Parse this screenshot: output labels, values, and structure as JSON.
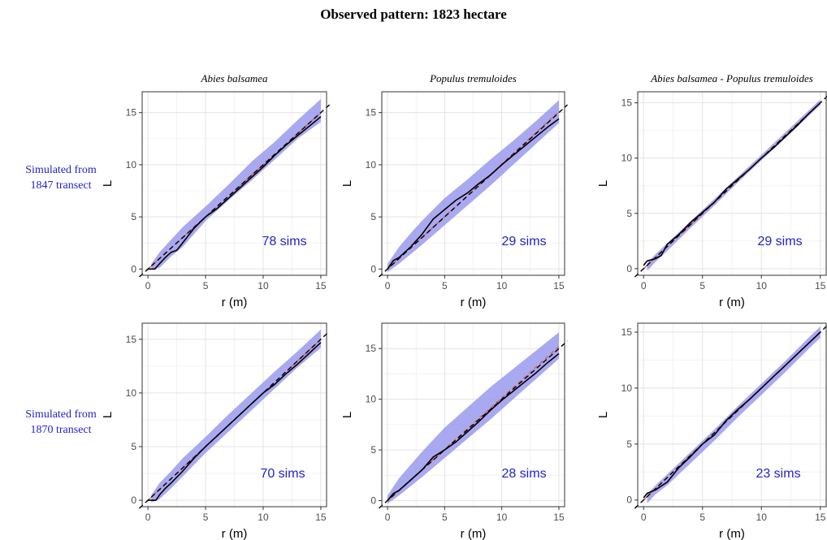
{
  "title": "Observed pattern: 1823 hectare",
  "row_labels": [
    [
      "Simulated from",
      "1847 transect"
    ],
    [
      "Simulated from",
      "1870 transect"
    ]
  ],
  "colors": {
    "envelope": "#9a9aee",
    "observed": "#000000",
    "theoretical": "#000000",
    "simulated_mean": "#e05a5a",
    "label_blue": "#2323c8"
  },
  "chart_data": [
    {
      "type": "line",
      "title": "Abies balsamea",
      "row_label": "1847 transect",
      "xlabel": "r (m)",
      "ylabel": "L",
      "xlim": [
        -0.5,
        15.5
      ],
      "ylim": [
        -0.6,
        17
      ],
      "xticks": [
        0,
        5,
        10,
        15
      ],
      "yticks": [
        0,
        5,
        10,
        15
      ],
      "annotation": "78 sims",
      "series": [
        {
          "role": "envelope",
          "x": [
            0.3,
            1,
            2,
            3,
            5,
            7,
            9,
            11,
            13,
            15
          ],
          "lower": [
            0,
            0.1,
            1.2,
            2.1,
            4.6,
            6.6,
            8.5,
            10.5,
            12.5,
            14.1
          ],
          "upper": [
            0.5,
            1.6,
            2.8,
            4,
            6,
            8.1,
            10.3,
            12.2,
            14.3,
            16.3
          ]
        },
        {
          "role": "theoretical",
          "x": [
            -0.5,
            15.5
          ],
          "y": [
            -0.5,
            15.5
          ]
        },
        {
          "role": "simulated_mean",
          "x": [
            0,
            15
          ],
          "y": [
            0,
            15
          ]
        },
        {
          "role": "observed",
          "x": [
            0,
            0.6,
            1,
            1.5,
            2,
            2.5,
            3,
            4,
            5,
            6,
            7,
            8,
            9,
            10,
            11,
            12,
            13,
            14,
            15
          ],
          "y": [
            0,
            0,
            0.5,
            1.1,
            1.6,
            1.8,
            2.5,
            3.9,
            5,
            5.8,
            6.8,
            7.8,
            8.8,
            9.8,
            10.9,
            11.9,
            12.8,
            13.7,
            14.6
          ]
        }
      ]
    },
    {
      "type": "line",
      "title": "Populus tremuloides",
      "row_label": "1847 transect",
      "xlabel": "r (m)",
      "ylabel": "L",
      "xlim": [
        -0.5,
        15.5
      ],
      "ylim": [
        -0.6,
        17
      ],
      "xticks": [
        0,
        5,
        10,
        15
      ],
      "yticks": [
        0,
        5,
        10,
        15
      ],
      "annotation": "29 sims",
      "series": [
        {
          "role": "envelope",
          "x": [
            0,
            1,
            2,
            3,
            5,
            7,
            9,
            11,
            13,
            15
          ],
          "lower": [
            -0.3,
            0.5,
            1.4,
            2.3,
            4.2,
            6.1,
            8,
            10,
            12,
            14
          ],
          "upper": [
            0.5,
            2.1,
            3.4,
            4.6,
            6.8,
            8.6,
            10.5,
            12.3,
            14.2,
            16.2
          ]
        },
        {
          "role": "theoretical",
          "x": [
            -0.5,
            15.5
          ],
          "y": [
            -0.5,
            15.5
          ]
        },
        {
          "role": "simulated_mean",
          "x": [
            0,
            15
          ],
          "y": [
            0,
            15.1
          ]
        },
        {
          "role": "observed",
          "x": [
            0,
            0.5,
            1,
            2,
            3,
            4,
            5,
            6,
            7,
            8,
            9,
            10,
            11,
            12,
            13,
            14,
            15
          ],
          "y": [
            0,
            0.8,
            1.1,
            2.1,
            3.3,
            4.8,
            5.7,
            6.6,
            7.3,
            8.2,
            9,
            10,
            10.9,
            11.8,
            12.7,
            13.6,
            14.4
          ]
        }
      ]
    },
    {
      "type": "line",
      "title": "Abies balsamea - Populus tremuloides",
      "row_label": "1847 transect",
      "xlabel": "r (m)",
      "ylabel": "L",
      "xlim": [
        -0.5,
        15.5
      ],
      "ylim": [
        -0.6,
        16
      ],
      "xticks": [
        0,
        5,
        10,
        15
      ],
      "yticks": [
        0,
        5,
        10,
        15
      ],
      "annotation": "29 sims",
      "series": [
        {
          "role": "envelope",
          "x": [
            0.3,
            1,
            2,
            4,
            6,
            8,
            10,
            12,
            14,
            15
          ],
          "lower": [
            -0.2,
            0.6,
            1.6,
            3.7,
            5.7,
            7.8,
            9.8,
            11.8,
            13.8,
            14.8
          ],
          "upper": [
            0.5,
            1.3,
            2.3,
            4.3,
            6.3,
            8.3,
            10.3,
            12.3,
            14.3,
            15.3
          ]
        },
        {
          "role": "theoretical",
          "x": [
            -0.5,
            15.5
          ],
          "y": [
            -0.5,
            15.5
          ]
        },
        {
          "role": "simulated_mean",
          "x": [
            0,
            15
          ],
          "y": [
            0,
            15
          ]
        },
        {
          "role": "observed",
          "x": [
            0,
            0.3,
            1,
            1.5,
            2,
            3,
            4,
            5,
            6,
            7,
            8,
            9,
            10,
            11,
            12,
            13,
            14,
            15
          ],
          "y": [
            0.3,
            0.7,
            0.9,
            1.2,
            2.2,
            3.1,
            4.2,
            5.1,
            6,
            7.2,
            8.1,
            9,
            10,
            10.9,
            11.9,
            12.9,
            14,
            15
          ]
        }
      ]
    },
    {
      "type": "line",
      "title": "",
      "row_label": "1870 transect",
      "xlabel": "r (m)",
      "ylabel": "L",
      "xlim": [
        -0.5,
        15.5
      ],
      "ylim": [
        -0.6,
        16.5
      ],
      "xticks": [
        0,
        5,
        10,
        15
      ],
      "yticks": [
        0,
        5,
        10,
        15
      ],
      "annotation": "70 sims",
      "series": [
        {
          "role": "envelope",
          "x": [
            0.3,
            1,
            2,
            3,
            5,
            7,
            9,
            11,
            13,
            15
          ],
          "lower": [
            -0.2,
            0.1,
            1.1,
            2.2,
            4.4,
            6.4,
            8.4,
            10.4,
            12.4,
            14.2
          ],
          "upper": [
            0.5,
            1.6,
            2.7,
            3.9,
            5.9,
            8,
            10,
            12,
            13.9,
            15.9
          ]
        },
        {
          "role": "theoretical",
          "x": [
            -0.5,
            15.5
          ],
          "y": [
            -0.5,
            15.5
          ]
        },
        {
          "role": "simulated_mean",
          "x": [
            0,
            15
          ],
          "y": [
            0,
            15
          ]
        },
        {
          "role": "observed",
          "x": [
            0,
            0.7,
            1,
            1.5,
            2,
            3,
            4,
            5,
            6,
            7,
            8,
            9,
            10,
            11,
            12,
            13,
            14,
            15
          ],
          "y": [
            0,
            0,
            0.5,
            1.1,
            1.6,
            2.7,
            3.9,
            5,
            6,
            7,
            8,
            9,
            10,
            10.8,
            11.8,
            12.7,
            13.7,
            14.7
          ]
        }
      ]
    },
    {
      "type": "line",
      "title": "",
      "row_label": "1870 transect",
      "xlabel": "r (m)",
      "ylabel": "L",
      "xlim": [
        -0.5,
        15.5
      ],
      "ylim": [
        -0.6,
        17.5
      ],
      "xticks": [
        0,
        5,
        10,
        15
      ],
      "yticks": [
        0,
        5,
        10,
        15
      ],
      "annotation": "28 sims",
      "series": [
        {
          "role": "envelope",
          "x": [
            0,
            1,
            2,
            3,
            5,
            7,
            9,
            11,
            13,
            15
          ],
          "lower": [
            -0.3,
            0.5,
            1.4,
            2.3,
            4.2,
            6.1,
            8,
            10,
            12,
            14
          ],
          "upper": [
            0.5,
            2.2,
            3.5,
            4.8,
            7.2,
            9.2,
            11.2,
            13,
            14.8,
            16.6
          ]
        },
        {
          "role": "theoretical",
          "x": [
            -0.5,
            15.5
          ],
          "y": [
            -0.5,
            15.5
          ]
        },
        {
          "role": "simulated_mean",
          "x": [
            0,
            15
          ],
          "y": [
            0,
            15.2
          ]
        },
        {
          "role": "observed",
          "x": [
            0,
            0.5,
            1,
            2,
            3,
            4,
            5,
            6,
            7,
            8,
            9,
            10,
            11,
            12,
            13,
            14,
            15
          ],
          "y": [
            0,
            0.7,
            1,
            2,
            3,
            4.3,
            5,
            5.8,
            6.8,
            7.8,
            8.9,
            9.9,
            10.8,
            11.7,
            12.6,
            13.6,
            14.5
          ]
        }
      ]
    },
    {
      "type": "line",
      "title": "",
      "row_label": "1870 transect",
      "xlabel": "r (m)",
      "ylabel": "L",
      "xlim": [
        -0.5,
        15.5
      ],
      "ylim": [
        -0.6,
        15.8
      ],
      "xticks": [
        0,
        5,
        10,
        15
      ],
      "yticks": [
        0,
        5,
        10,
        15
      ],
      "annotation": "23 sims",
      "series": [
        {
          "role": "envelope",
          "x": [
            0.3,
            1,
            2,
            4,
            6,
            8,
            10,
            12,
            14,
            15
          ],
          "lower": [
            -0.3,
            0.5,
            1.3,
            3.3,
            5.3,
            7.4,
            9.4,
            11.4,
            13.5,
            14.5
          ],
          "upper": [
            0.5,
            1.3,
            2.3,
            4.3,
            6.3,
            8.4,
            10.4,
            12.4,
            14.5,
            15.5
          ]
        },
        {
          "role": "theoretical",
          "x": [
            -0.5,
            15.5
          ],
          "y": [
            -0.5,
            15.5
          ]
        },
        {
          "role": "simulated_mean",
          "x": [
            0,
            15
          ],
          "y": [
            0,
            15
          ]
        },
        {
          "role": "observed",
          "x": [
            0,
            0.3,
            1,
            2,
            3,
            4,
            5,
            6,
            7,
            8,
            9,
            10,
            11,
            12,
            13,
            14,
            15
          ],
          "y": [
            0.2,
            0.6,
            0.9,
            1.6,
            2.9,
            3.9,
            5,
            5.8,
            7.1,
            8.1,
            9,
            10,
            11,
            12,
            13,
            14,
            15
          ]
        }
      ]
    }
  ]
}
